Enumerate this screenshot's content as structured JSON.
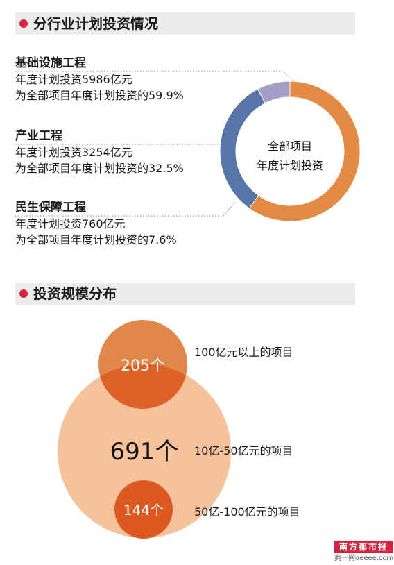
{
  "sections": {
    "industry_title": "分行业计划投资情况",
    "scale_title": "投资规模分布"
  },
  "industry": {
    "categories": [
      {
        "name": "基础设施工程",
        "line1": "年度计划投资5986亿元",
        "line2": "为全部项目年度计划投资的59.9%"
      },
      {
        "name": "产业工程",
        "line1": "年度计划投资3254亿元",
        "line2": "为全部项目年度计划投资的32.5%"
      },
      {
        "name": "民生保障工程",
        "line1": "年度计划投资760亿元",
        "line2": "为全部项目年度计划投资的7.6%"
      }
    ],
    "donut_center_line1": "全部项目",
    "donut_center_line2": "年度计划投资"
  },
  "scale": {
    "bubbles": [
      {
        "count_text": "205个",
        "label": "100亿元以上的项目"
      },
      {
        "count_text": "691个",
        "label": "10亿-50亿元的项目"
      },
      {
        "count_text": "144个",
        "label": "50亿-100亿元的项目"
      }
    ]
  },
  "footer": {
    "logo_text": "南方都市报",
    "logo_sub": "奥一网oeeee.com"
  },
  "colors": {
    "orange": "#e38a45",
    "blue": "#5676a8",
    "lavender": "#a69ec8",
    "bullet_red": "#d6223f",
    "bubble_light": "#f6c29b",
    "bubble_orange": "#e2874a",
    "bubble_overlap": "#dd6227",
    "bubble_dark": "#dc5a22"
  },
  "chart_data": [
    {
      "type": "pie",
      "labels": [
        "基础设施工程",
        "产业工程",
        "民生保障工程"
      ],
      "values": [
        5986,
        3254,
        760
      ],
      "percentages": [
        59.9,
        32.5,
        7.6
      ],
      "unit": "亿元",
      "center_text": [
        "全部项目",
        "年度计划投资"
      ]
    },
    {
      "type": "bubble",
      "labels": [
        "100亿元以上的项目",
        "10亿-50亿元的项目",
        "50亿-100亿元的项目"
      ],
      "values": [
        205,
        691,
        144
      ],
      "unit": "个"
    }
  ]
}
